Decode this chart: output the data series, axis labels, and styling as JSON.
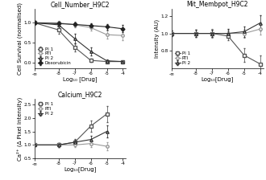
{
  "cell_number": {
    "title": "Cell_Number_H9C2",
    "xlabel": "Log₁₀ [Drug]",
    "ylabel": "Cell Survival (normalised)",
    "xlim": [
      -9.5,
      -3.8
    ],
    "ylim": [
      -0.15,
      1.35
    ],
    "xtick_vals": [
      -9.5,
      -8,
      -7,
      -6,
      -5,
      -4
    ],
    "xtick_labels": [
      "-∞",
      "-8",
      "-7",
      "-6",
      "-5",
      "-4"
    ],
    "yticks": [
      0.0,
      0.5,
      1.0
    ],
    "ytick_labels": [
      "0.0",
      "0.5",
      "1.0"
    ],
    "series": {
      "PI1": {
        "x": [
          -9.5,
          -8,
          -7,
          -6,
          -5,
          -4
        ],
        "y": [
          1.0,
          0.82,
          0.38,
          0.05,
          0.02,
          0.02
        ],
        "yerr": [
          0.04,
          0.09,
          0.1,
          0.04,
          0.02,
          0.02
        ],
        "marker": "s",
        "color": "#555555",
        "label": "PI 1",
        "mfc": "white"
      },
      "RTI": {
        "x": [
          -9.5,
          -8,
          -7,
          -6,
          -5,
          -4
        ],
        "y": [
          1.0,
          1.0,
          0.95,
          0.88,
          0.7,
          0.68
        ],
        "yerr": [
          0.04,
          0.05,
          0.07,
          0.08,
          0.1,
          0.12
        ],
        "marker": "o",
        "color": "#999999",
        "label": "RTI",
        "mfc": "white"
      },
      "PI2": {
        "x": [
          -9.5,
          -8,
          -7,
          -6,
          -5,
          -4
        ],
        "y": [
          1.0,
          0.95,
          0.6,
          0.28,
          0.04,
          0.02
        ],
        "yerr": [
          0.05,
          0.08,
          0.12,
          0.1,
          0.03,
          0.02
        ],
        "marker": "^",
        "color": "#333333",
        "label": "PI 2",
        "mfc": "white"
      },
      "Doxorubicin": {
        "x": [
          -9.5,
          -8,
          -7,
          -6,
          -5,
          -4
        ],
        "y": [
          1.0,
          0.98,
          0.96,
          0.93,
          0.9,
          0.85
        ],
        "yerr": [
          0.04,
          0.04,
          0.05,
          0.06,
          0.07,
          0.09
        ],
        "marker": "D",
        "color": "#222222",
        "label": "Doxorubicin",
        "mfc": "#222222"
      }
    }
  },
  "mit_membpot": {
    "title": "Mit_Membpot_H9C2",
    "xlabel": "Log₁₀[Drug]",
    "ylabel": "Intensity (AU)",
    "xlim": [
      -9.5,
      -3.8
    ],
    "ylim": [
      0.6,
      1.28
    ],
    "xtick_vals": [
      -9.5,
      -8,
      -7,
      -6,
      -5,
      -4
    ],
    "xtick_labels": [
      "-∞",
      "-8",
      "-7",
      "-6",
      "-5",
      "-4"
    ],
    "yticks": [
      0.8,
      1.0,
      1.2
    ],
    "ytick_labels": [
      "0.8",
      "1.0",
      "1.2"
    ],
    "series": {
      "PI1": {
        "x": [
          -9.5,
          -8,
          -7,
          -6,
          -5,
          -4
        ],
        "y": [
          1.0,
          1.0,
          1.0,
          0.97,
          0.75,
          0.65
        ],
        "yerr": [
          0.03,
          0.04,
          0.04,
          0.05,
          0.08,
          0.1
        ],
        "marker": "s",
        "color": "#555555",
        "label": "PI 1",
        "mfc": "white"
      },
      "RTI": {
        "x": [
          -9.5,
          -8,
          -7,
          -6,
          -5,
          -4
        ],
        "y": [
          1.0,
          1.0,
          1.0,
          1.0,
          1.0,
          1.05
        ],
        "yerr": [
          0.03,
          0.04,
          0.05,
          0.04,
          0.05,
          0.06
        ],
        "marker": "o",
        "color": "#999999",
        "label": "RTI",
        "mfc": "white"
      },
      "PI2": {
        "x": [
          -9.5,
          -8,
          -7,
          -6,
          -5,
          -4
        ],
        "y": [
          1.0,
          1.0,
          1.0,
          1.0,
          1.02,
          1.12
        ],
        "yerr": [
          0.03,
          0.04,
          0.04,
          0.05,
          0.06,
          0.09
        ],
        "marker": "^",
        "color": "#333333",
        "label": "PI 2",
        "mfc": "white"
      }
    }
  },
  "calcium": {
    "title": "Calcium_H9C2",
    "xlabel": "Log₁₀[Drug]",
    "ylabel": "Ca²⁺ (Δ Pixel Intensity)",
    "xlim": [
      -9.5,
      -3.8
    ],
    "ylim": [
      0.5,
      2.7
    ],
    "xtick_vals": [
      -9.5,
      -8,
      -7,
      -6,
      -5,
      -4
    ],
    "xtick_labels": [
      "-∞",
      "-8",
      "-7",
      "-6",
      "-5",
      "-4"
    ],
    "yticks": [
      0.5,
      1.0,
      1.5,
      2.0,
      2.5
    ],
    "ytick_labels": [
      "0.5",
      "1.0",
      "1.5",
      "2.0",
      "2.5"
    ],
    "series": {
      "PI1": {
        "x": [
          -9.5,
          -8,
          -7,
          -6,
          -5
        ],
        "y": [
          1.0,
          1.0,
          1.1,
          1.7,
          2.15
        ],
        "yerr": [
          0.05,
          0.08,
          0.12,
          0.2,
          0.3
        ],
        "marker": "s",
        "color": "#555555",
        "label": "PI 1",
        "mfc": "white"
      },
      "RTI": {
        "x": [
          -9.5,
          -8,
          -7,
          -6,
          -5
        ],
        "y": [
          1.0,
          1.0,
          1.0,
          1.05,
          0.95
        ],
        "yerr": [
          0.05,
          0.07,
          0.08,
          0.12,
          0.15
        ],
        "marker": "o",
        "color": "#999999",
        "label": "RTI",
        "mfc": "white"
      },
      "PI2": {
        "x": [
          -9.5,
          -8,
          -7,
          -6,
          -5
        ],
        "y": [
          1.0,
          1.0,
          1.1,
          1.2,
          1.5
        ],
        "yerr": [
          0.05,
          0.07,
          0.1,
          0.15,
          0.22
        ],
        "marker": "^",
        "color": "#333333",
        "label": "PI 2",
        "mfc": "white"
      }
    }
  },
  "font_size": 5,
  "title_font_size": 5.5,
  "tick_font_size": 4.2,
  "legend_font_size": 4,
  "linewidth": 0.8,
  "markersize": 2.5,
  "elinewidth": 0.55,
  "capsize": 1
}
